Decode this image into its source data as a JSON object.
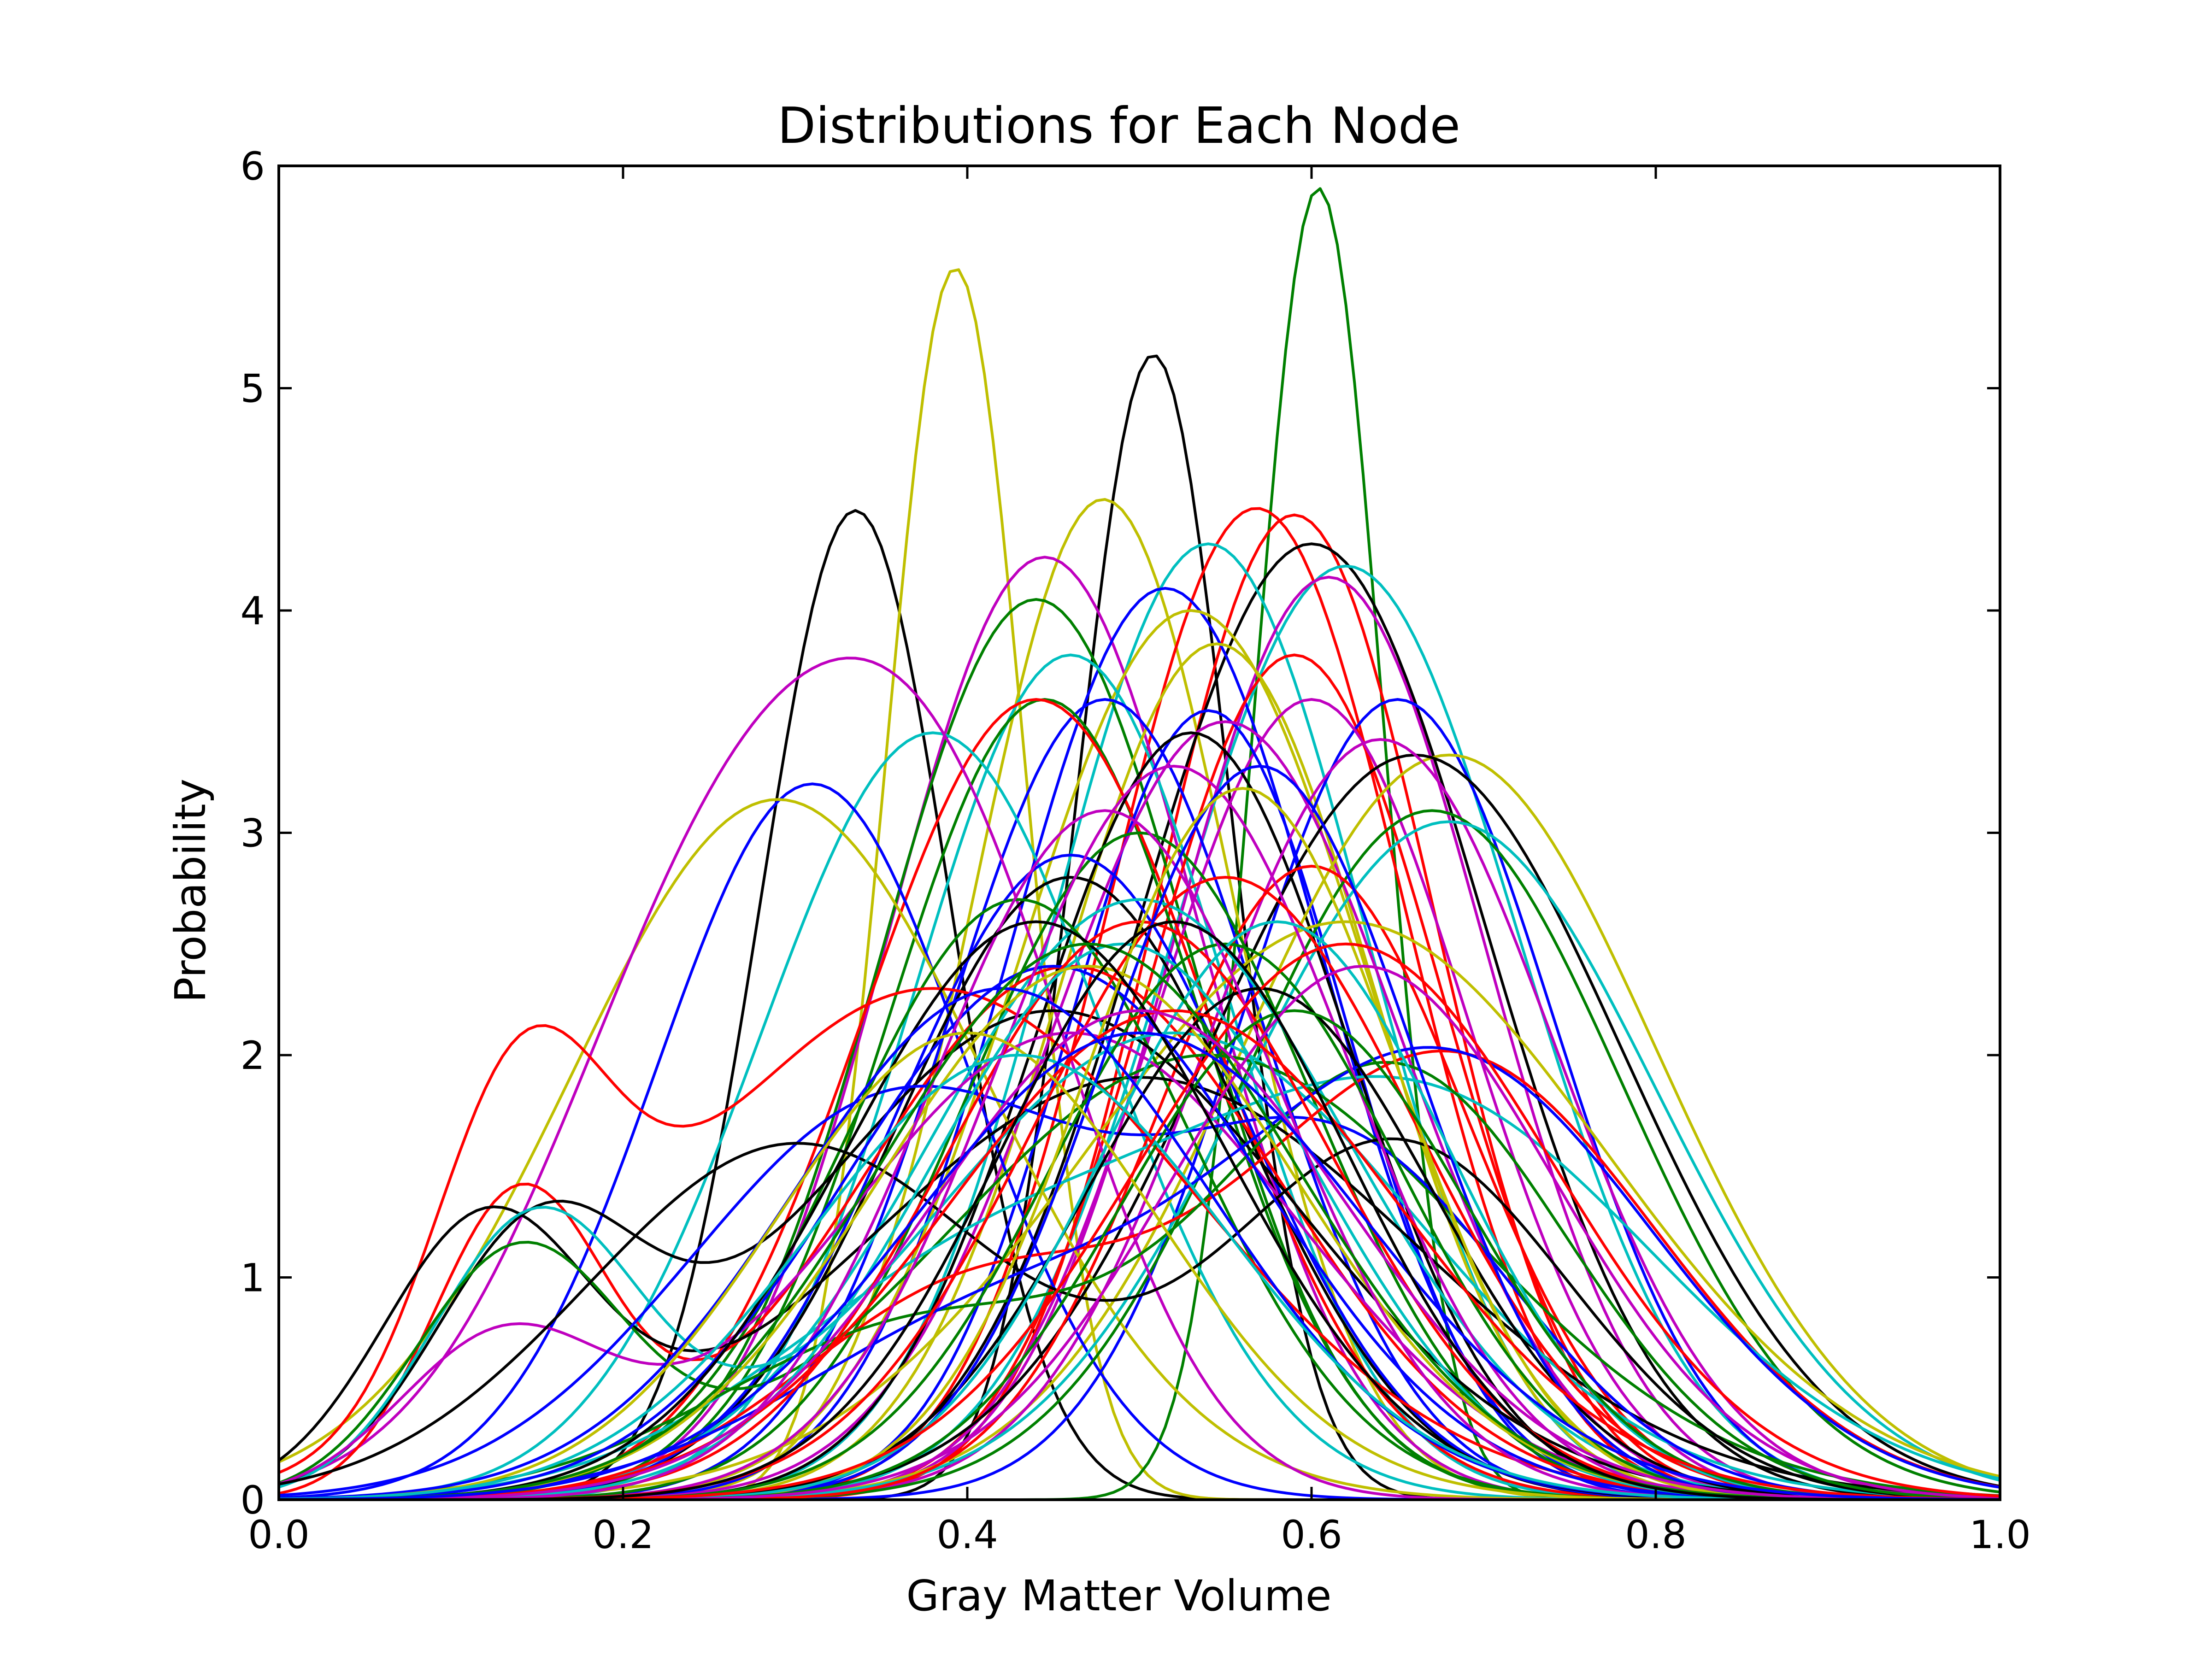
{
  "chart_data": {
    "type": "line",
    "title": "Distributions for Each Node",
    "xlabel": "Gray Matter Volume",
    "ylabel": "Probability",
    "xlim": [
      0.0,
      1.0
    ],
    "ylim": [
      0,
      6
    ],
    "x_ticks": [
      0.0,
      0.2,
      0.4,
      0.6,
      0.8,
      1.0
    ],
    "x_tick_labels": [
      "0.0",
      "0.2",
      "0.4",
      "0.6",
      "0.8",
      "1.0"
    ],
    "y_ticks": [
      0,
      1,
      2,
      3,
      4,
      5,
      6
    ],
    "y_tick_labels": [
      "0",
      "1",
      "2",
      "3",
      "4",
      "5",
      "6"
    ],
    "grid": false,
    "legend": "none",
    "palette": [
      "#0000ff",
      "#008000",
      "#ff0000",
      "#00bfbf",
      "#bf00bf",
      "#bfbf00",
      "#000000"
    ],
    "series": [
      {
        "color": "#000000",
        "components": [
          [
            0.335,
            0.055,
            4.45
          ]
        ]
      },
      {
        "color": "#bfbf00",
        "components": [
          [
            0.393,
            0.04,
            5.54
          ]
        ]
      },
      {
        "color": "#000000",
        "components": [
          [
            0.508,
            0.045,
            5.15
          ]
        ]
      },
      {
        "color": "#008000",
        "components": [
          [
            0.604,
            0.037,
            5.9
          ]
        ]
      },
      {
        "color": "#bfbf00",
        "components": [
          [
            0.479,
            0.075,
            4.5
          ]
        ]
      },
      {
        "color": "#ff0000",
        "components": [
          [
            0.568,
            0.085,
            4.46
          ]
        ]
      },
      {
        "color": "#ff0000",
        "components": [
          [
            0.59,
            0.08,
            4.43
          ]
        ]
      },
      {
        "color": "#000000",
        "components": [
          [
            0.6,
            0.1,
            4.3
          ]
        ]
      },
      {
        "color": "#00bfbf",
        "components": [
          [
            0.54,
            0.09,
            4.3
          ]
        ]
      },
      {
        "color": "#bf00bf",
        "components": [
          [
            0.445,
            0.09,
            4.24
          ]
        ]
      },
      {
        "color": "#00bfbf",
        "components": [
          [
            0.62,
            0.1,
            4.2
          ]
        ]
      },
      {
        "color": "#0000ff",
        "components": [
          [
            0.515,
            0.09,
            4.1
          ]
        ]
      },
      {
        "color": "#008000",
        "components": [
          [
            0.44,
            0.09,
            4.05
          ]
        ]
      },
      {
        "color": "#bf00bf",
        "components": [
          [
            0.61,
            0.09,
            4.15
          ]
        ]
      },
      {
        "color": "#bfbf00",
        "components": [
          [
            0.53,
            0.1,
            4.0
          ]
        ]
      },
      {
        "color": "#00bfbf",
        "components": [
          [
            0.46,
            0.09,
            3.8
          ]
        ]
      },
      {
        "color": "#ff0000",
        "components": [
          [
            0.59,
            0.085,
            3.8
          ]
        ]
      },
      {
        "color": "#bfbf00",
        "components": [
          [
            0.545,
            0.09,
            3.85
          ]
        ]
      },
      {
        "color": "#0000ff",
        "components": [
          [
            0.65,
            0.09,
            3.6
          ]
        ]
      },
      {
        "color": "#0000ff",
        "components": [
          [
            0.48,
            0.09,
            3.6
          ]
        ]
      },
      {
        "color": "#bf00bf",
        "components": [
          [
            0.6,
            0.09,
            3.6
          ]
        ]
      },
      {
        "color": "#008000",
        "components": [
          [
            0.445,
            0.09,
            3.6
          ]
        ]
      },
      {
        "color": "#ff0000",
        "components": [
          [
            0.44,
            0.1,
            3.6
          ]
        ]
      },
      {
        "color": "#0000ff",
        "components": [
          [
            0.54,
            0.08,
            3.55
          ]
        ]
      },
      {
        "color": "#bf00bf",
        "components": [
          [
            0.55,
            0.1,
            3.5
          ]
        ]
      },
      {
        "color": "#00bfbf",
        "components": [
          [
            0.38,
            0.1,
            3.45
          ]
        ]
      },
      {
        "color": "#000000",
        "components": [
          [
            0.53,
            0.09,
            3.45
          ]
        ]
      },
      {
        "color": "#bfbf00",
        "components": [
          [
            0.68,
            0.12,
            3.35
          ]
        ]
      },
      {
        "color": "#000000",
        "components": [
          [
            0.66,
            0.12,
            3.35
          ]
        ]
      },
      {
        "color": "#bf00bf",
        "components": [
          [
            0.64,
            0.1,
            3.42
          ]
        ]
      },
      {
        "color": "#0000ff",
        "components": [
          [
            0.31,
            0.09,
            3.22
          ]
        ]
      },
      {
        "color": "#bfbf00",
        "components": [
          [
            0.29,
            0.12,
            3.15
          ]
        ]
      },
      {
        "color": "#008000",
        "components": [
          [
            0.67,
            0.11,
            3.1
          ]
        ]
      },
      {
        "color": "#00bfbf",
        "components": [
          [
            0.68,
            0.12,
            3.05
          ]
        ]
      },
      {
        "color": "#bf00bf",
        "components": [
          [
            0.27,
            0.1,
            2.9
          ],
          [
            0.4,
            0.08,
            2.0
          ]
        ]
      },
      {
        "color": "#000000",
        "components": [
          [
            0.46,
            0.1,
            2.8
          ]
        ]
      },
      {
        "color": "#ff0000",
        "components": [
          [
            0.6,
            0.09,
            2.85
          ]
        ]
      },
      {
        "color": "#008000",
        "components": [
          [
            0.5,
            0.1,
            3.0
          ]
        ]
      },
      {
        "color": "#0000ff",
        "components": [
          [
            0.46,
            0.1,
            2.9
          ]
        ]
      },
      {
        "color": "#bfbf00",
        "components": [
          [
            0.62,
            0.15,
            2.6
          ]
        ]
      },
      {
        "color": "#00bfbf",
        "components": [
          [
            0.5,
            0.12,
            2.7
          ]
        ]
      },
      {
        "color": "#008000",
        "components": [
          [
            0.43,
            0.1,
            2.7
          ]
        ]
      },
      {
        "color": "#ff0000",
        "components": [
          [
            0.14,
            0.05,
            1.45
          ],
          [
            0.38,
            0.15,
            2.3
          ]
        ]
      },
      {
        "color": "#ff0000",
        "components": [
          [
            0.14,
            0.05,
            1.35
          ],
          [
            0.46,
            0.12,
            2.4
          ]
        ]
      },
      {
        "color": "#000000",
        "components": [
          [
            0.12,
            0.06,
            1.2
          ],
          [
            0.5,
            0.16,
            1.9
          ]
        ]
      },
      {
        "color": "#000000",
        "components": [
          [
            0.15,
            0.06,
            1.1
          ],
          [
            0.45,
            0.14,
            2.2
          ]
        ]
      },
      {
        "color": "#00bfbf",
        "components": [
          [
            0.15,
            0.06,
            1.25
          ],
          [
            0.52,
            0.14,
            2.1
          ]
        ]
      },
      {
        "color": "#008000",
        "components": [
          [
            0.14,
            0.06,
            1.1
          ],
          [
            0.54,
            0.15,
            2.0
          ]
        ]
      },
      {
        "color": "#bf00bf",
        "components": [
          [
            0.13,
            0.06,
            0.7
          ],
          [
            0.46,
            0.13,
            2.1
          ]
        ]
      },
      {
        "color": "#0000ff",
        "components": [
          [
            0.36,
            0.12,
            1.8
          ],
          [
            0.62,
            0.1,
            1.5
          ]
        ]
      },
      {
        "color": "#000000",
        "components": [
          [
            0.3,
            0.12,
            1.6
          ],
          [
            0.65,
            0.1,
            1.6
          ]
        ]
      },
      {
        "color": "#ff0000",
        "components": [
          [
            0.68,
            0.12,
            2.0
          ],
          [
            0.4,
            0.1,
            0.9
          ]
        ]
      },
      {
        "color": "#00bfbf",
        "components": [
          [
            0.66,
            0.14,
            1.8
          ],
          [
            0.4,
            0.12,
            0.9
          ]
        ]
      },
      {
        "color": "#008000",
        "components": [
          [
            0.65,
            0.1,
            1.9
          ],
          [
            0.38,
            0.12,
            0.8
          ]
        ]
      },
      {
        "color": "#0000ff",
        "components": [
          [
            0.68,
            0.12,
            1.95
          ],
          [
            0.42,
            0.12,
            0.8
          ]
        ]
      },
      {
        "color": "#0000ff",
        "components": [
          [
            0.45,
            0.12,
            2.4
          ]
        ]
      },
      {
        "color": "#ff0000",
        "components": [
          [
            0.5,
            0.11,
            2.6
          ]
        ]
      },
      {
        "color": "#bf00bf",
        "components": [
          [
            0.52,
            0.1,
            3.3
          ]
        ]
      },
      {
        "color": "#00bfbf",
        "components": [
          [
            0.49,
            0.11,
            2.5
          ]
        ]
      },
      {
        "color": "#bfbf00",
        "components": [
          [
            0.47,
            0.12,
            2.4
          ]
        ]
      },
      {
        "color": "#008000",
        "components": [
          [
            0.55,
            0.1,
            2.5
          ]
        ]
      },
      {
        "color": "#000000",
        "components": [
          [
            0.57,
            0.1,
            2.3
          ]
        ]
      },
      {
        "color": "#ff0000",
        "components": [
          [
            0.55,
            0.11,
            2.8
          ]
        ]
      },
      {
        "color": "#bf00bf",
        "components": [
          [
            0.48,
            0.1,
            3.1
          ]
        ]
      },
      {
        "color": "#0000ff",
        "components": [
          [
            0.57,
            0.09,
            3.3
          ]
        ]
      },
      {
        "color": "#bfbf00",
        "components": [
          [
            0.56,
            0.09,
            3.2
          ]
        ]
      },
      {
        "color": "#00bfbf",
        "components": [
          [
            0.58,
            0.1,
            2.6
          ]
        ]
      },
      {
        "color": "#008000",
        "components": [
          [
            0.59,
            0.1,
            2.2
          ]
        ]
      },
      {
        "color": "#bf00bf",
        "components": [
          [
            0.63,
            0.11,
            2.4
          ]
        ]
      },
      {
        "color": "#ff0000",
        "components": [
          [
            0.52,
            0.13,
            2.2
          ]
        ]
      },
      {
        "color": "#000000",
        "components": [
          [
            0.44,
            0.11,
            2.6
          ]
        ]
      },
      {
        "color": "#0000ff",
        "components": [
          [
            0.42,
            0.12,
            2.3
          ]
        ]
      },
      {
        "color": "#bfbf00",
        "components": [
          [
            0.4,
            0.11,
            2.1
          ]
        ]
      },
      {
        "color": "#00bfbf",
        "components": [
          [
            0.43,
            0.12,
            2.0
          ]
        ]
      },
      {
        "color": "#008000",
        "components": [
          [
            0.47,
            0.12,
            2.5
          ]
        ]
      },
      {
        "color": "#ff0000",
        "components": [
          [
            0.62,
            0.12,
            2.5
          ]
        ]
      },
      {
        "color": "#bf00bf",
        "components": [
          [
            0.5,
            0.12,
            2.2
          ]
        ]
      },
      {
        "color": "#0000ff",
        "components": [
          [
            0.5,
            0.13,
            2.1
          ]
        ]
      },
      {
        "color": "#000000",
        "components": [
          [
            0.52,
            0.1,
            2.6
          ]
        ]
      }
    ]
  }
}
